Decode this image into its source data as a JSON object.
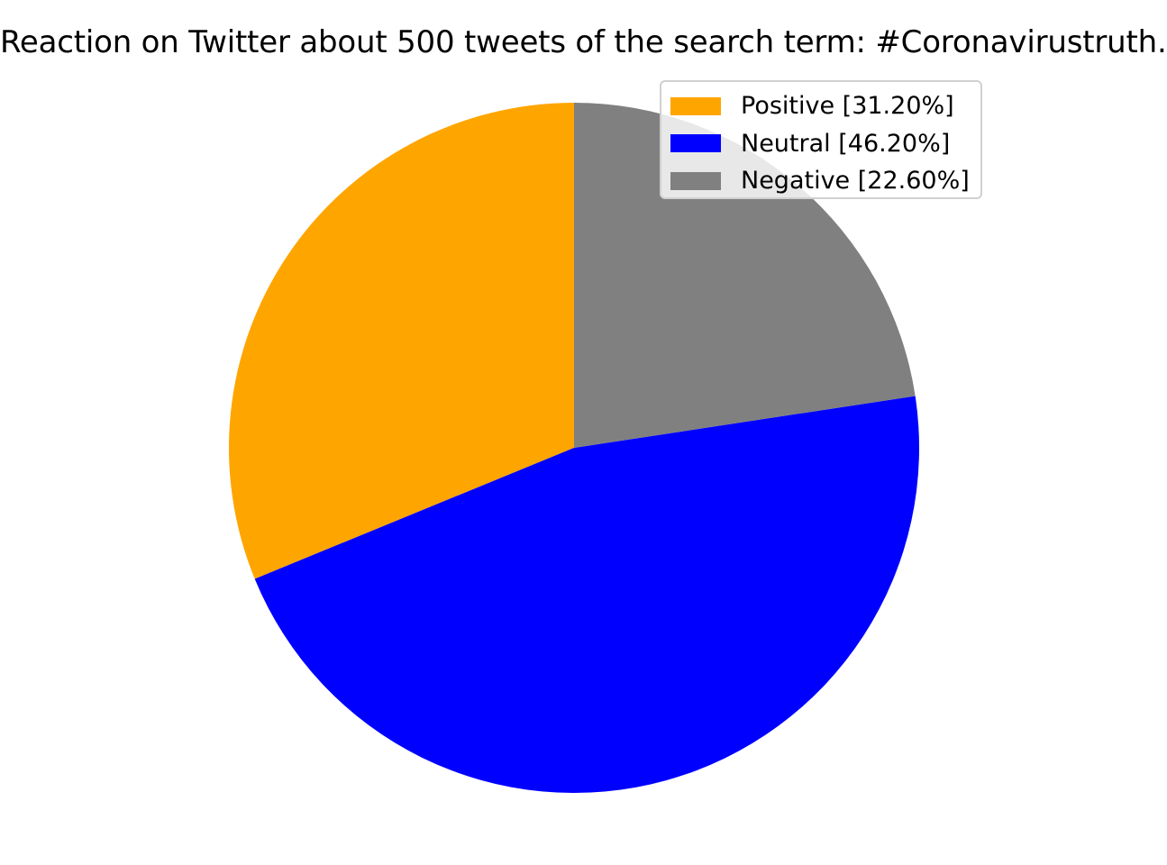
{
  "chart_data": {
    "type": "pie",
    "title": "Reaction on Twitter about 500 tweets of the search term: #Coronavirustruth.",
    "categories": [
      "Positive",
      "Neutral",
      "Negative"
    ],
    "values": [
      31.2,
      46.2,
      22.6
    ],
    "colors": [
      "#ffa500",
      "#0000ff",
      "#808080"
    ],
    "legend": {
      "placement": "top-right",
      "entries": [
        "Positive [31.20%]",
        "Neutral [46.20%]",
        "Negative [22.60%]"
      ]
    },
    "start_angle_deg": 90,
    "direction": "counterclockwise"
  }
}
